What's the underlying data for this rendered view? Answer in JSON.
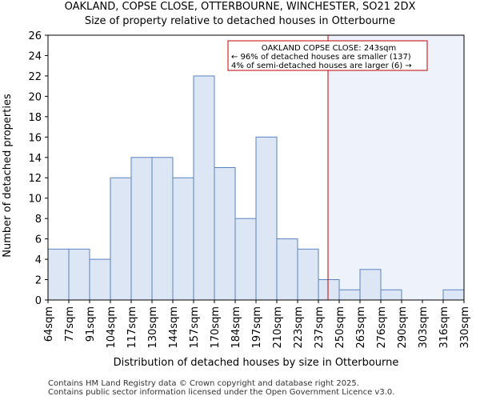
{
  "chart_data": {
    "type": "bar",
    "title": "OAKLAND, COPSE CLOSE, OTTERBOURNE, WINCHESTER, SO21 2DX",
    "subtitle": "Size of property relative to detached houses in Otterbourne",
    "xlabel": "Distribution of detached houses by size in Otterbourne",
    "ylabel": "Number of detached properties",
    "bin_edges": [
      "64sqm",
      "77sqm",
      "91sqm",
      "104sqm",
      "117sqm",
      "130sqm",
      "144sqm",
      "157sqm",
      "170sqm",
      "184sqm",
      "197sqm",
      "210sqm",
      "223sqm",
      "237sqm",
      "250sqm",
      "263sqm",
      "276sqm",
      "290sqm",
      "303sqm",
      "316sqm",
      "330sqm"
    ],
    "values": [
      5,
      5,
      4,
      12,
      14,
      14,
      12,
      22,
      13,
      8,
      16,
      6,
      5,
      2,
      1,
      3,
      1,
      0,
      0,
      1
    ],
    "ylim": [
      0,
      26
    ],
    "yticks": [
      0,
      2,
      4,
      6,
      8,
      10,
      12,
      14,
      16,
      18,
      20,
      22,
      24,
      26
    ],
    "grid": false,
    "bar_fill": "#dce6f5",
    "bar_edge": "#5a82c0",
    "marker_color": "#c00000",
    "marker_value_sqm": 243,
    "highlight_region": "right of marker",
    "highlight_fill": "#eef2fb",
    "annotation": {
      "lines": [
        "OAKLAND COPSE CLOSE: 243sqm",
        "← 96% of detached houses are smaller (137)",
        "4% of semi-detached houses are larger (6) →"
      ],
      "border_color": "#c00000"
    }
  },
  "footer": {
    "line1": "Contains HM Land Registry data © Crown copyright and database right 2025.",
    "line2": "Contains public sector information licensed under the Open Government Licence v3.0."
  }
}
